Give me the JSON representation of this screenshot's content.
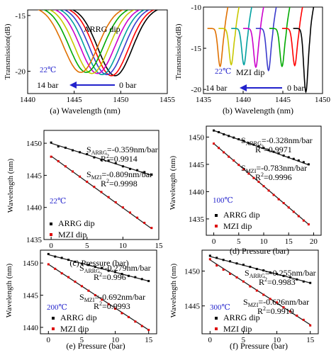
{
  "chart_data": [
    {
      "panel": "a",
      "type": "line",
      "caption": "(a) Wavelength (nm)",
      "xlabel": "",
      "ylabel": "Transmission(dB)",
      "xlim": [
        1440,
        1455
      ],
      "ylim": [
        -22,
        -14.5
      ],
      "xticks": [
        "1440",
        "1445",
        "1450",
        "1455"
      ],
      "yticks": [
        "-15",
        "-20"
      ],
      "annotations": {
        "dip": "ARRG dip",
        "temp": "22℃",
        "from": "14 bar",
        "to": "0 bar"
      },
      "series": [
        {
          "color": "#000000",
          "dip_x": 1449.4,
          "dip_y": -20.4
        },
        {
          "color": "#ff0000",
          "dip_x": 1449.0,
          "dip_y": -20.4
        },
        {
          "color": "#3a3acc",
          "dip_x": 1448.5,
          "dip_y": -20.3
        },
        {
          "color": "#00a0a0",
          "dip_x": 1448.0,
          "dip_y": -20.3
        },
        {
          "color": "#cc00cc",
          "dip_x": 1447.5,
          "dip_y": -20.2
        },
        {
          "color": "#c8c800",
          "dip_x": 1446.9,
          "dip_y": -20.2
        },
        {
          "color": "#00aa00",
          "dip_x": 1446.3,
          "dip_y": -20.1
        },
        {
          "color": "#e07000",
          "dip_x": 1445.7,
          "dip_y": -20.1
        }
      ]
    },
    {
      "panel": "b",
      "type": "line",
      "caption": "(b) Wavelength (nm)",
      "xlabel": "",
      "ylabel": "Transmission(dB)",
      "xlim": [
        1435,
        1450
      ],
      "ylim": [
        -20.5,
        -10
      ],
      "xticks": [
        "1435",
        "1440",
        "1445",
        "1450"
      ],
      "yticks": [
        "-10",
        "-15",
        "-20"
      ],
      "annotations": {
        "dip": "MZI dip",
        "temp": "22℃",
        "from": "14 bar",
        "to": "0 bar"
      },
      "series": [
        {
          "color": "#e07000",
          "dip_x": 1437.1,
          "dip_y": -17.2
        },
        {
          "color": "#c8c800",
          "dip_x": 1438.5,
          "dip_y": -17.0
        },
        {
          "color": "#00a0a0",
          "dip_x": 1440.1,
          "dip_y": -17.0
        },
        {
          "color": "#cc00cc",
          "dip_x": 1441.6,
          "dip_y": -17.3
        },
        {
          "color": "#3a3acc",
          "dip_x": 1443.2,
          "dip_y": -17.7
        },
        {
          "color": "#00aa00",
          "dip_x": 1444.9,
          "dip_y": -17.2
        },
        {
          "color": "#ff0000",
          "dip_x": 1446.5,
          "dip_y": -17.1
        },
        {
          "color": "#000000",
          "dip_x": 1447.9,
          "dip_y": -20.3
        }
      ]
    },
    {
      "panel": "c",
      "type": "scatter",
      "caption": "(c) Pressure (bar)",
      "xlabel": "",
      "ylabel": "Wavelength (nm)",
      "xlim": [
        -1,
        15
      ],
      "ylim": [
        1435,
        1452
      ],
      "xticks": [
        "0",
        "5",
        "10",
        "15"
      ],
      "ytick_values": [
        1435,
        1440,
        1445,
        1450
      ],
      "temp": "22℃",
      "legend": [
        "ARRG dip",
        "MZI dip"
      ],
      "fits": [
        {
          "S": "=-0.359nm/bar",
          "R": "=0.9914",
          "sub": "ARRG",
          "x": [
            0,
            14
          ],
          "y": [
            1450.0,
            1445.0
          ]
        },
        {
          "S": "=-0.809nm/bar",
          "R": "=0.9998",
          "sub": "MZI",
          "x": [
            0,
            14
          ],
          "y": [
            1448.0,
            1436.7
          ]
        }
      ],
      "series": [
        {
          "name": "ARRG dip",
          "x": [
            0,
            1,
            2,
            3,
            4,
            5,
            6,
            7,
            8,
            9,
            10,
            11,
            12,
            13,
            14
          ],
          "y": [
            1450.1,
            1449.5,
            1449.3,
            1448.9,
            1448.6,
            1448.3,
            1447.8,
            1447.4,
            1447.3,
            1446.9,
            1446.4,
            1446.0,
            1445.8,
            1445.5,
            1445.1
          ]
        },
        {
          "name": "MZI dip",
          "x": [
            0,
            1,
            2,
            3,
            4,
            5,
            6,
            7,
            8,
            9,
            10,
            11,
            12,
            13,
            14
          ],
          "y": [
            1447.9,
            1447.2,
            1446.4,
            1445.6,
            1444.8,
            1444.0,
            1443.2,
            1442.4,
            1441.6,
            1440.8,
            1440.0,
            1439.2,
            1438.4,
            1437.6,
            1436.8
          ]
        }
      ]
    },
    {
      "panel": "d",
      "type": "scatter",
      "caption": "(d) Pressure (bar)",
      "xlabel": "",
      "ylabel": "Wavelength (nm)",
      "xlim": [
        -1.5,
        21.5
      ],
      "ylim": [
        1432,
        1452
      ],
      "xticks": [
        "0",
        "5",
        "10",
        "15",
        "20"
      ],
      "ytick_values": [
        1435,
        1440,
        1445,
        1450
      ],
      "temp": "100℃",
      "legend": [
        "ARRG dip",
        "MZI dip"
      ],
      "fits": [
        {
          "S": "=-0.328nm/bar",
          "R": "=0.9971",
          "sub": "ARRG",
          "x": [
            0,
            19
          ],
          "y": [
            1451.2,
            1444.9
          ]
        },
        {
          "S": "=-0.783nm/bar",
          "R": "=0.9996",
          "sub": "MZI",
          "x": [
            0,
            19
          ],
          "y": [
            1448.8,
            1434.0
          ]
        }
      ],
      "series": [
        {
          "name": "ARRG dip",
          "x": [
            0,
            1,
            2,
            3,
            4,
            5,
            6,
            7,
            8,
            9,
            10,
            11,
            12,
            13,
            14,
            15,
            16,
            17,
            18,
            19
          ],
          "y": [
            1451.2,
            1450.9,
            1450.5,
            1450.2,
            1449.9,
            1449.6,
            1449.3,
            1448.9,
            1448.6,
            1448.3,
            1448.0,
            1447.6,
            1447.3,
            1447.0,
            1446.6,
            1446.3,
            1446.0,
            1445.7,
            1445.4,
            1445.0
          ]
        },
        {
          "name": "MZI dip",
          "x": [
            0,
            1,
            2,
            3,
            4,
            5,
            6,
            7,
            8,
            9,
            10,
            11,
            12,
            13,
            14,
            15,
            16,
            17,
            18,
            19
          ],
          "y": [
            1448.8,
            1448.0,
            1447.2,
            1446.4,
            1445.7,
            1444.9,
            1444.1,
            1443.3,
            1442.5,
            1441.8,
            1441.0,
            1440.2,
            1439.4,
            1438.6,
            1437.9,
            1437.1,
            1436.3,
            1435.5,
            1434.7,
            1434.0
          ]
        }
      ]
    },
    {
      "panel": "e",
      "type": "scatter",
      "caption": "(e) Pressure (bar)",
      "xlabel": "",
      "ylabel": "Wavelength (nm)",
      "xlim": [
        -1.2,
        16.2
      ],
      "ylim": [
        1439,
        1452
      ],
      "xticks": [
        "0",
        "5",
        "10",
        "15"
      ],
      "ytick_values": [
        1440,
        1445,
        1450
      ],
      "temp": "200℃",
      "legend": [
        "ARRG dip",
        "MZI dip"
      ],
      "fits": [
        {
          "S": "=-0.279nm/bar",
          "R": "=0.996",
          "sub": "ARRG",
          "x": [
            0,
            15
          ],
          "y": [
            1451.3,
            1447.2
          ]
        },
        {
          "S": "=-0.692nm/bar",
          "R": "=0.9993",
          "sub": "MZI",
          "x": [
            0,
            15
          ],
          "y": [
            1449.8,
            1439.6
          ]
        }
      ],
      "series": [
        {
          "name": "ARRG dip",
          "x": [
            0,
            1,
            2,
            3,
            4,
            5,
            6,
            7,
            8,
            9,
            10,
            11,
            12,
            13,
            14,
            15
          ],
          "y": [
            1451.4,
            1451.0,
            1450.8,
            1450.5,
            1450.2,
            1449.9,
            1449.7,
            1449.4,
            1449.2,
            1448.8,
            1448.6,
            1448.3,
            1448.0,
            1447.8,
            1447.5,
            1447.2
          ]
        },
        {
          "name": "MZI dip",
          "x": [
            0,
            1,
            2,
            3,
            4,
            5,
            6,
            7,
            8,
            9,
            10,
            11,
            12,
            13,
            14,
            15
          ],
          "y": [
            1449.8,
            1449.1,
            1448.4,
            1447.8,
            1447.1,
            1446.4,
            1445.7,
            1445.0,
            1444.3,
            1443.6,
            1442.9,
            1442.2,
            1441.6,
            1440.9,
            1440.2,
            1439.6
          ]
        }
      ]
    },
    {
      "panel": "f",
      "type": "scatter",
      "caption": "(f) Pressure (bar)",
      "xlabel": "",
      "ylabel": "Wavelength (nm)",
      "xlim": [
        -1.2,
        16.2
      ],
      "ylim": [
        1441,
        1453
      ],
      "xticks": [
        "0",
        "5",
        "10",
        "15"
      ],
      "ytick_values": [
        1445,
        1450
      ],
      "temp": "300℃",
      "legend": [
        "ARRG dip",
        "MZI dip"
      ],
      "fits": [
        {
          "S": "=-0.255nm/bar",
          "R": "=0.9983",
          "sub": "ARRG",
          "x": [
            0,
            15
          ],
          "y": [
            1452.1,
            1448.3
          ]
        },
        {
          "S": "=-0.626nm/bar",
          "R": "=0.9919",
          "sub": "MZI",
          "x": [
            0,
            15
          ],
          "y": [
            1451.6,
            1442.3
          ]
        }
      ],
      "series": [
        {
          "name": "ARRG dip",
          "x": [
            0,
            1,
            2,
            3,
            4,
            5,
            6,
            7,
            8,
            9,
            10,
            11,
            12,
            13,
            14,
            15
          ],
          "y": [
            1452.2,
            1451.9,
            1451.6,
            1451.4,
            1451.1,
            1450.9,
            1450.6,
            1450.3,
            1450.1,
            1449.8,
            1449.6,
            1449.3,
            1449.1,
            1448.8,
            1448.5,
            1448.3
          ]
        },
        {
          "name": "MZI dip",
          "x": [
            0,
            1,
            2,
            3,
            4,
            5,
            6,
            7,
            8,
            9,
            10,
            11,
            12,
            13,
            14,
            15
          ],
          "y": [
            1451.7,
            1450.8,
            1450.2,
            1449.6,
            1449.1,
            1448.5,
            1447.8,
            1447.2,
            1446.6,
            1446.0,
            1445.5,
            1444.8,
            1444.2,
            1443.6,
            1443.0,
            1442.2
          ]
        }
      ]
    }
  ]
}
